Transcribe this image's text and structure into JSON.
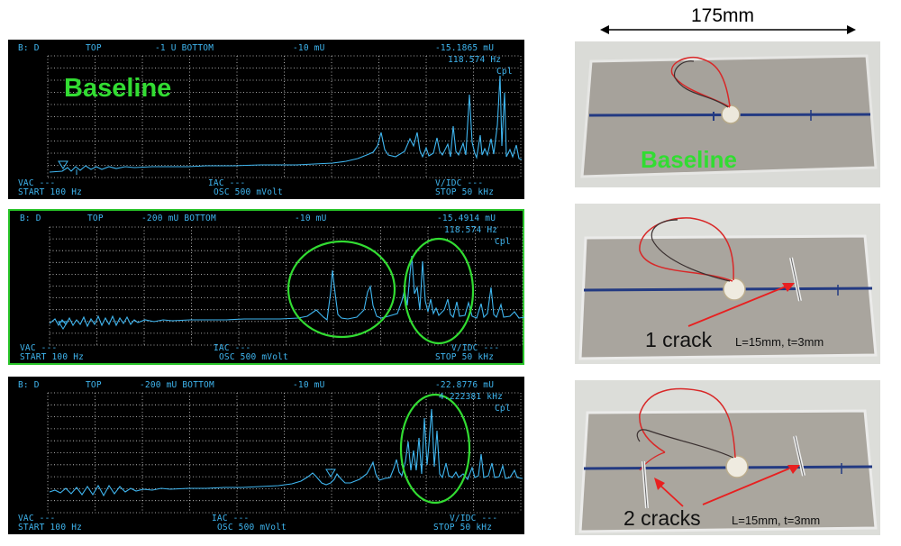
{
  "dimension": {
    "label": "175mm"
  },
  "scopes": [
    {
      "top_left": "B: D",
      "top_mid1": "TOP",
      "top_mid2": "-1 U BOTTOM",
      "top_mid3": "-10 mU",
      "top_right": "-15.1865 mU",
      "freq": "118.574 Hz",
      "cpl": "Cpl",
      "bl_vac": "VAC ---",
      "bl_start": "START 100 Hz",
      "bm_iac": "IAC ---",
      "bm_osc": "OSC 500 mVolt",
      "br_vidc": "V/IDC ---",
      "br_stop": "STOP 50 kHz",
      "label": "Baseline"
    },
    {
      "top_left": "B: D",
      "top_mid1": "TOP",
      "top_mid2": "-200 mU BOTTOM",
      "top_mid3": "-10 mU",
      "top_right": "-15.4914 mU",
      "freq": "118.574 Hz",
      "cpl": "Cpl",
      "bl_vac": "VAC ---",
      "bl_start": "START 100 Hz",
      "bm_iac": "IAC ---",
      "bm_osc": "OSC 500 mVolt",
      "br_vidc": "V/IDC ---",
      "br_stop": "STOP 50 kHz"
    },
    {
      "top_left": "B: D",
      "top_mid1": "TOP",
      "top_mid2": "-200 mU BOTTOM",
      "top_mid3": "-10 mU",
      "top_right": "-22.8776 mU",
      "freq": "4.222381 kHz",
      "cpl": "Cpl",
      "bl_vac": "VAC ---",
      "bl_start": "START 100 Hz",
      "bm_iac": "IAC ---",
      "bm_osc": "OSC 500 mVolt",
      "br_vidc": "V/IDC ---",
      "br_stop": "STOP 50 kHz"
    }
  ],
  "photos": [
    {
      "label": "Baseline"
    },
    {
      "caption": "1 crack",
      "note": "L=15mm, t=3mm"
    },
    {
      "caption": "2 cracks",
      "note": "L=15mm, t=3mm"
    }
  ],
  "colors": {
    "trace": "#3fb6f0",
    "highlight": "#32dc32",
    "arrow": "#e82020",
    "wire_red": "#d82828"
  }
}
